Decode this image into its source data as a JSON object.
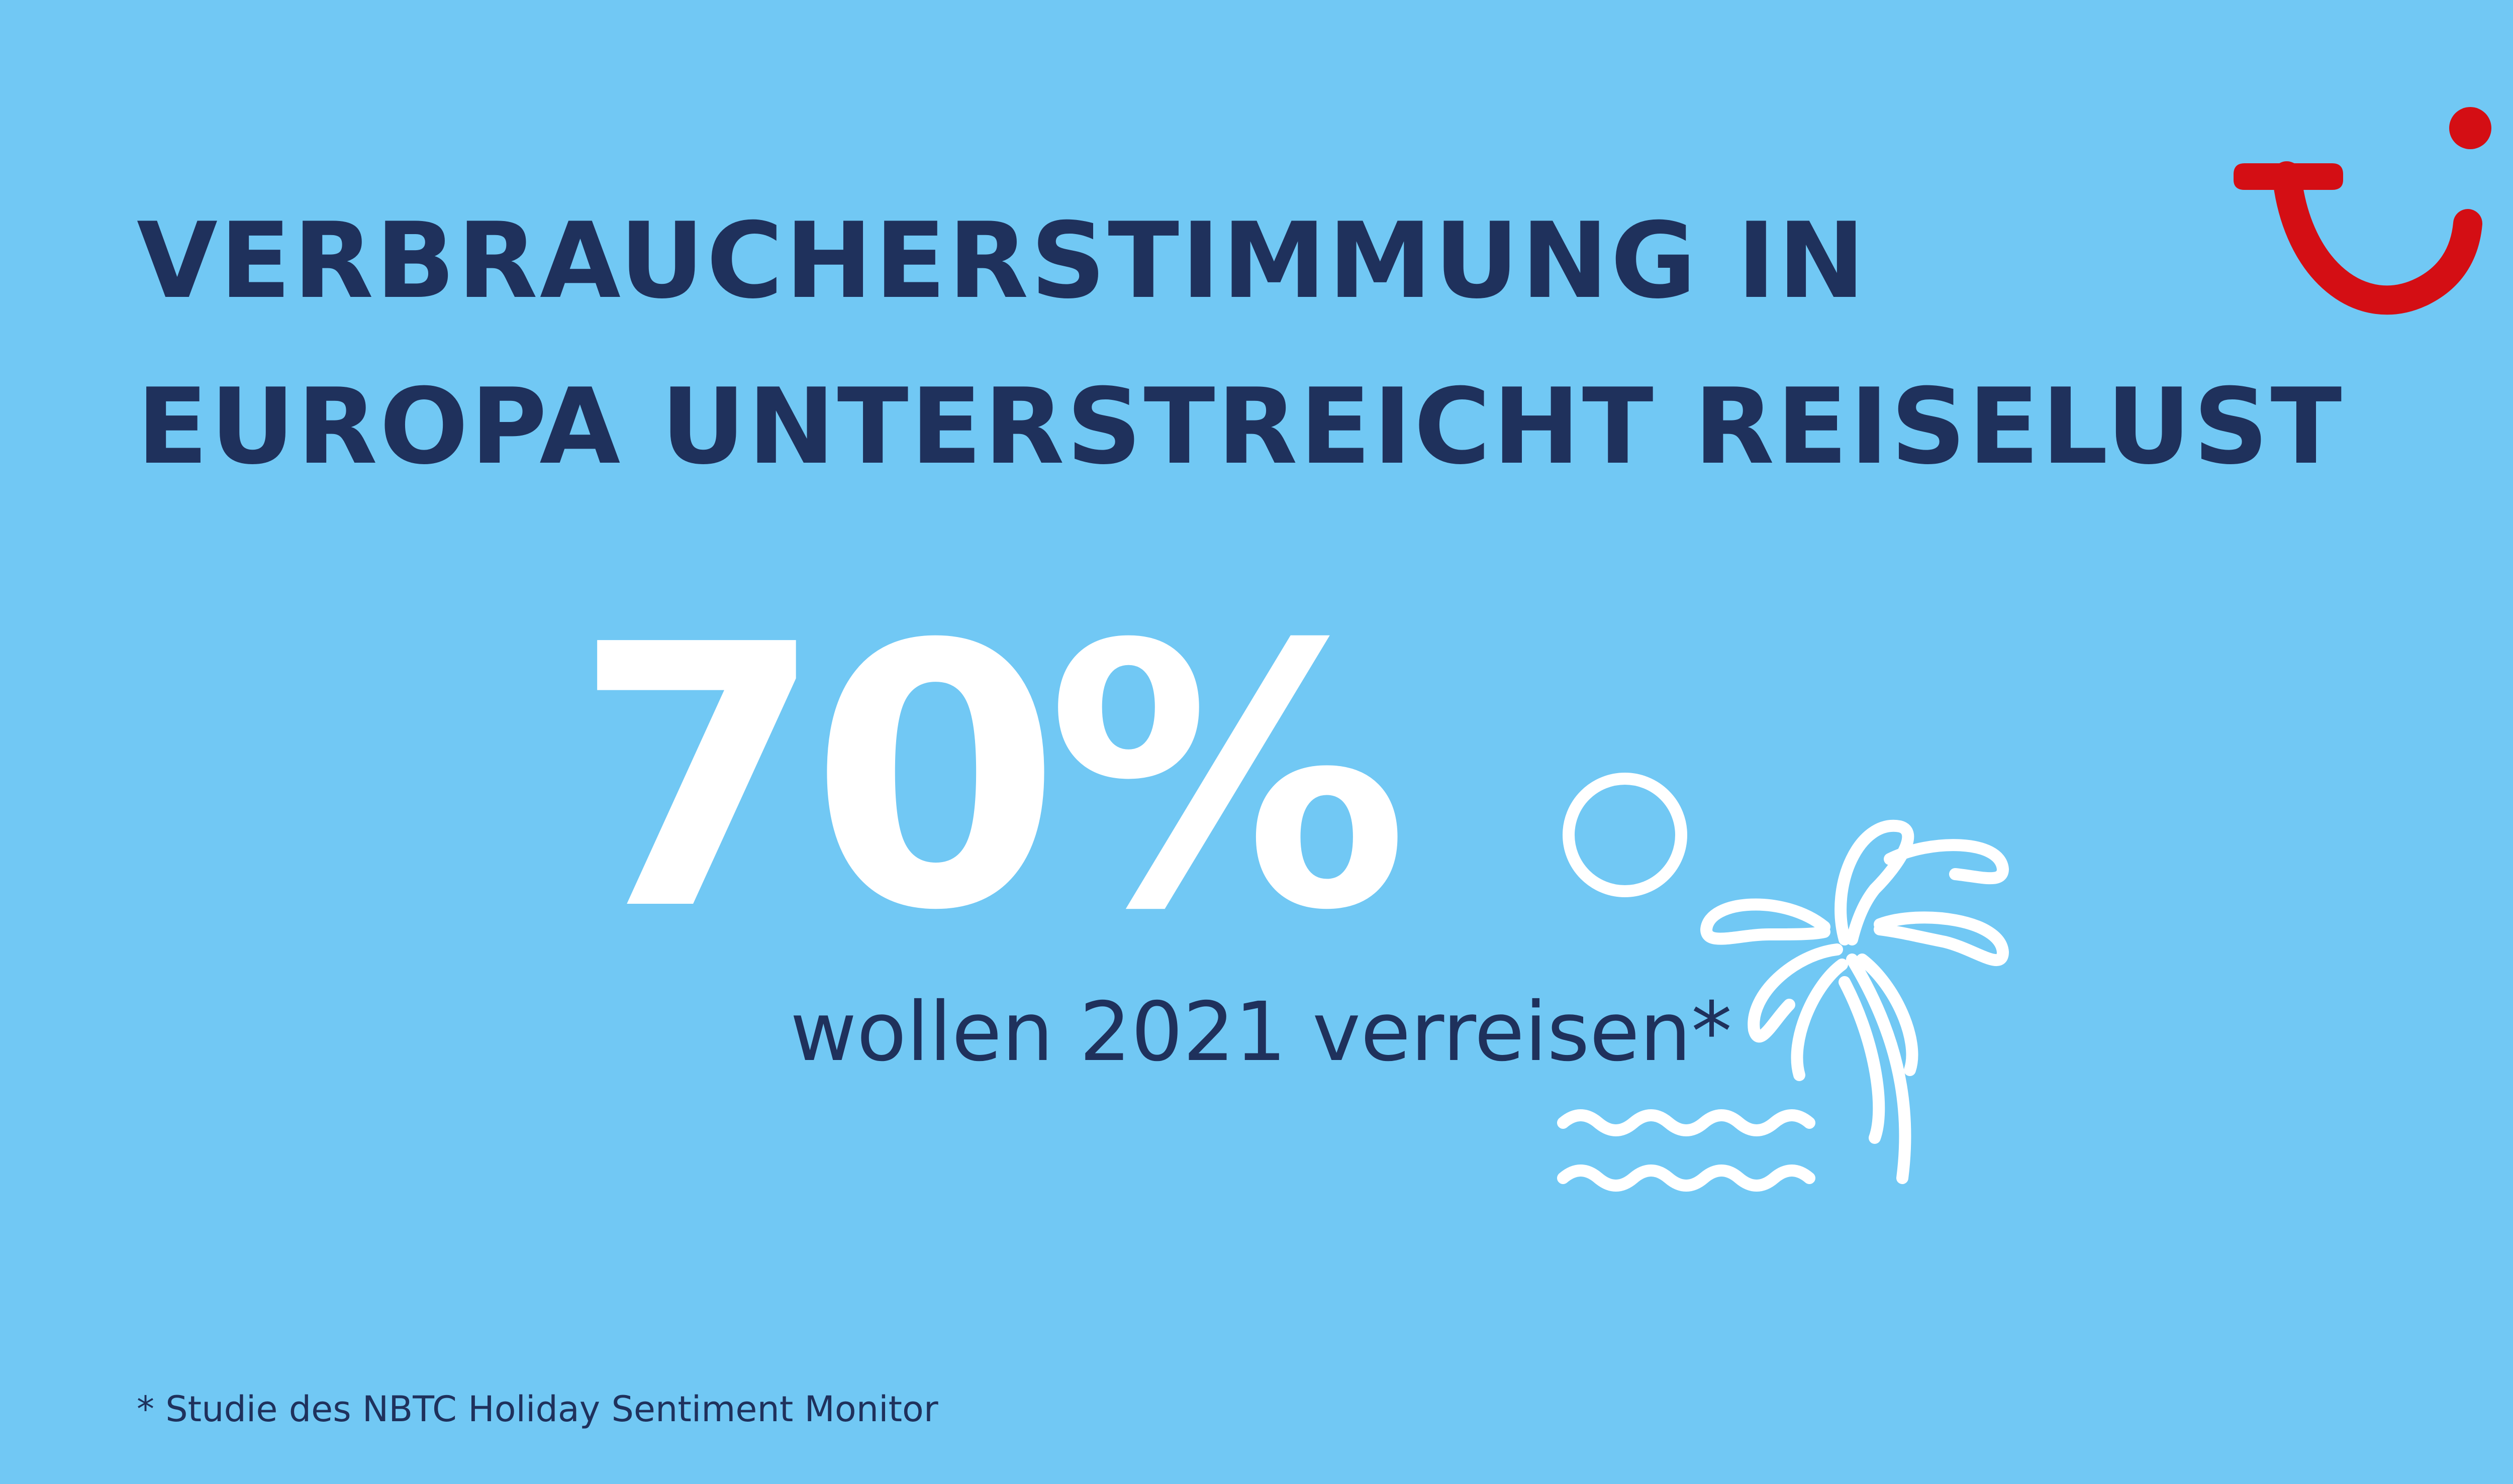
{
  "brand": {
    "logo_icon": "tui-smile-logo-icon",
    "logo_color": "#d40e14"
  },
  "headline": {
    "line1": "VERBRAUCHERSTIMMUNG IN",
    "line2": "EUROPA UNTERSTREICHT REISELUST"
  },
  "stat": {
    "value": "70%",
    "caption": "wollen 2021 verreisen*"
  },
  "illustration": {
    "icons": [
      "sun-icon",
      "palm-tree-icon",
      "waves-icon"
    ],
    "stroke_color": "#ffffff"
  },
  "footnote": "* Studie des NBTC Holiday Sentiment Monitor",
  "colors": {
    "background": "#71c8f4",
    "text_dark": "#1f315c",
    "text_light": "#ffffff",
    "accent": "#d40e14"
  }
}
